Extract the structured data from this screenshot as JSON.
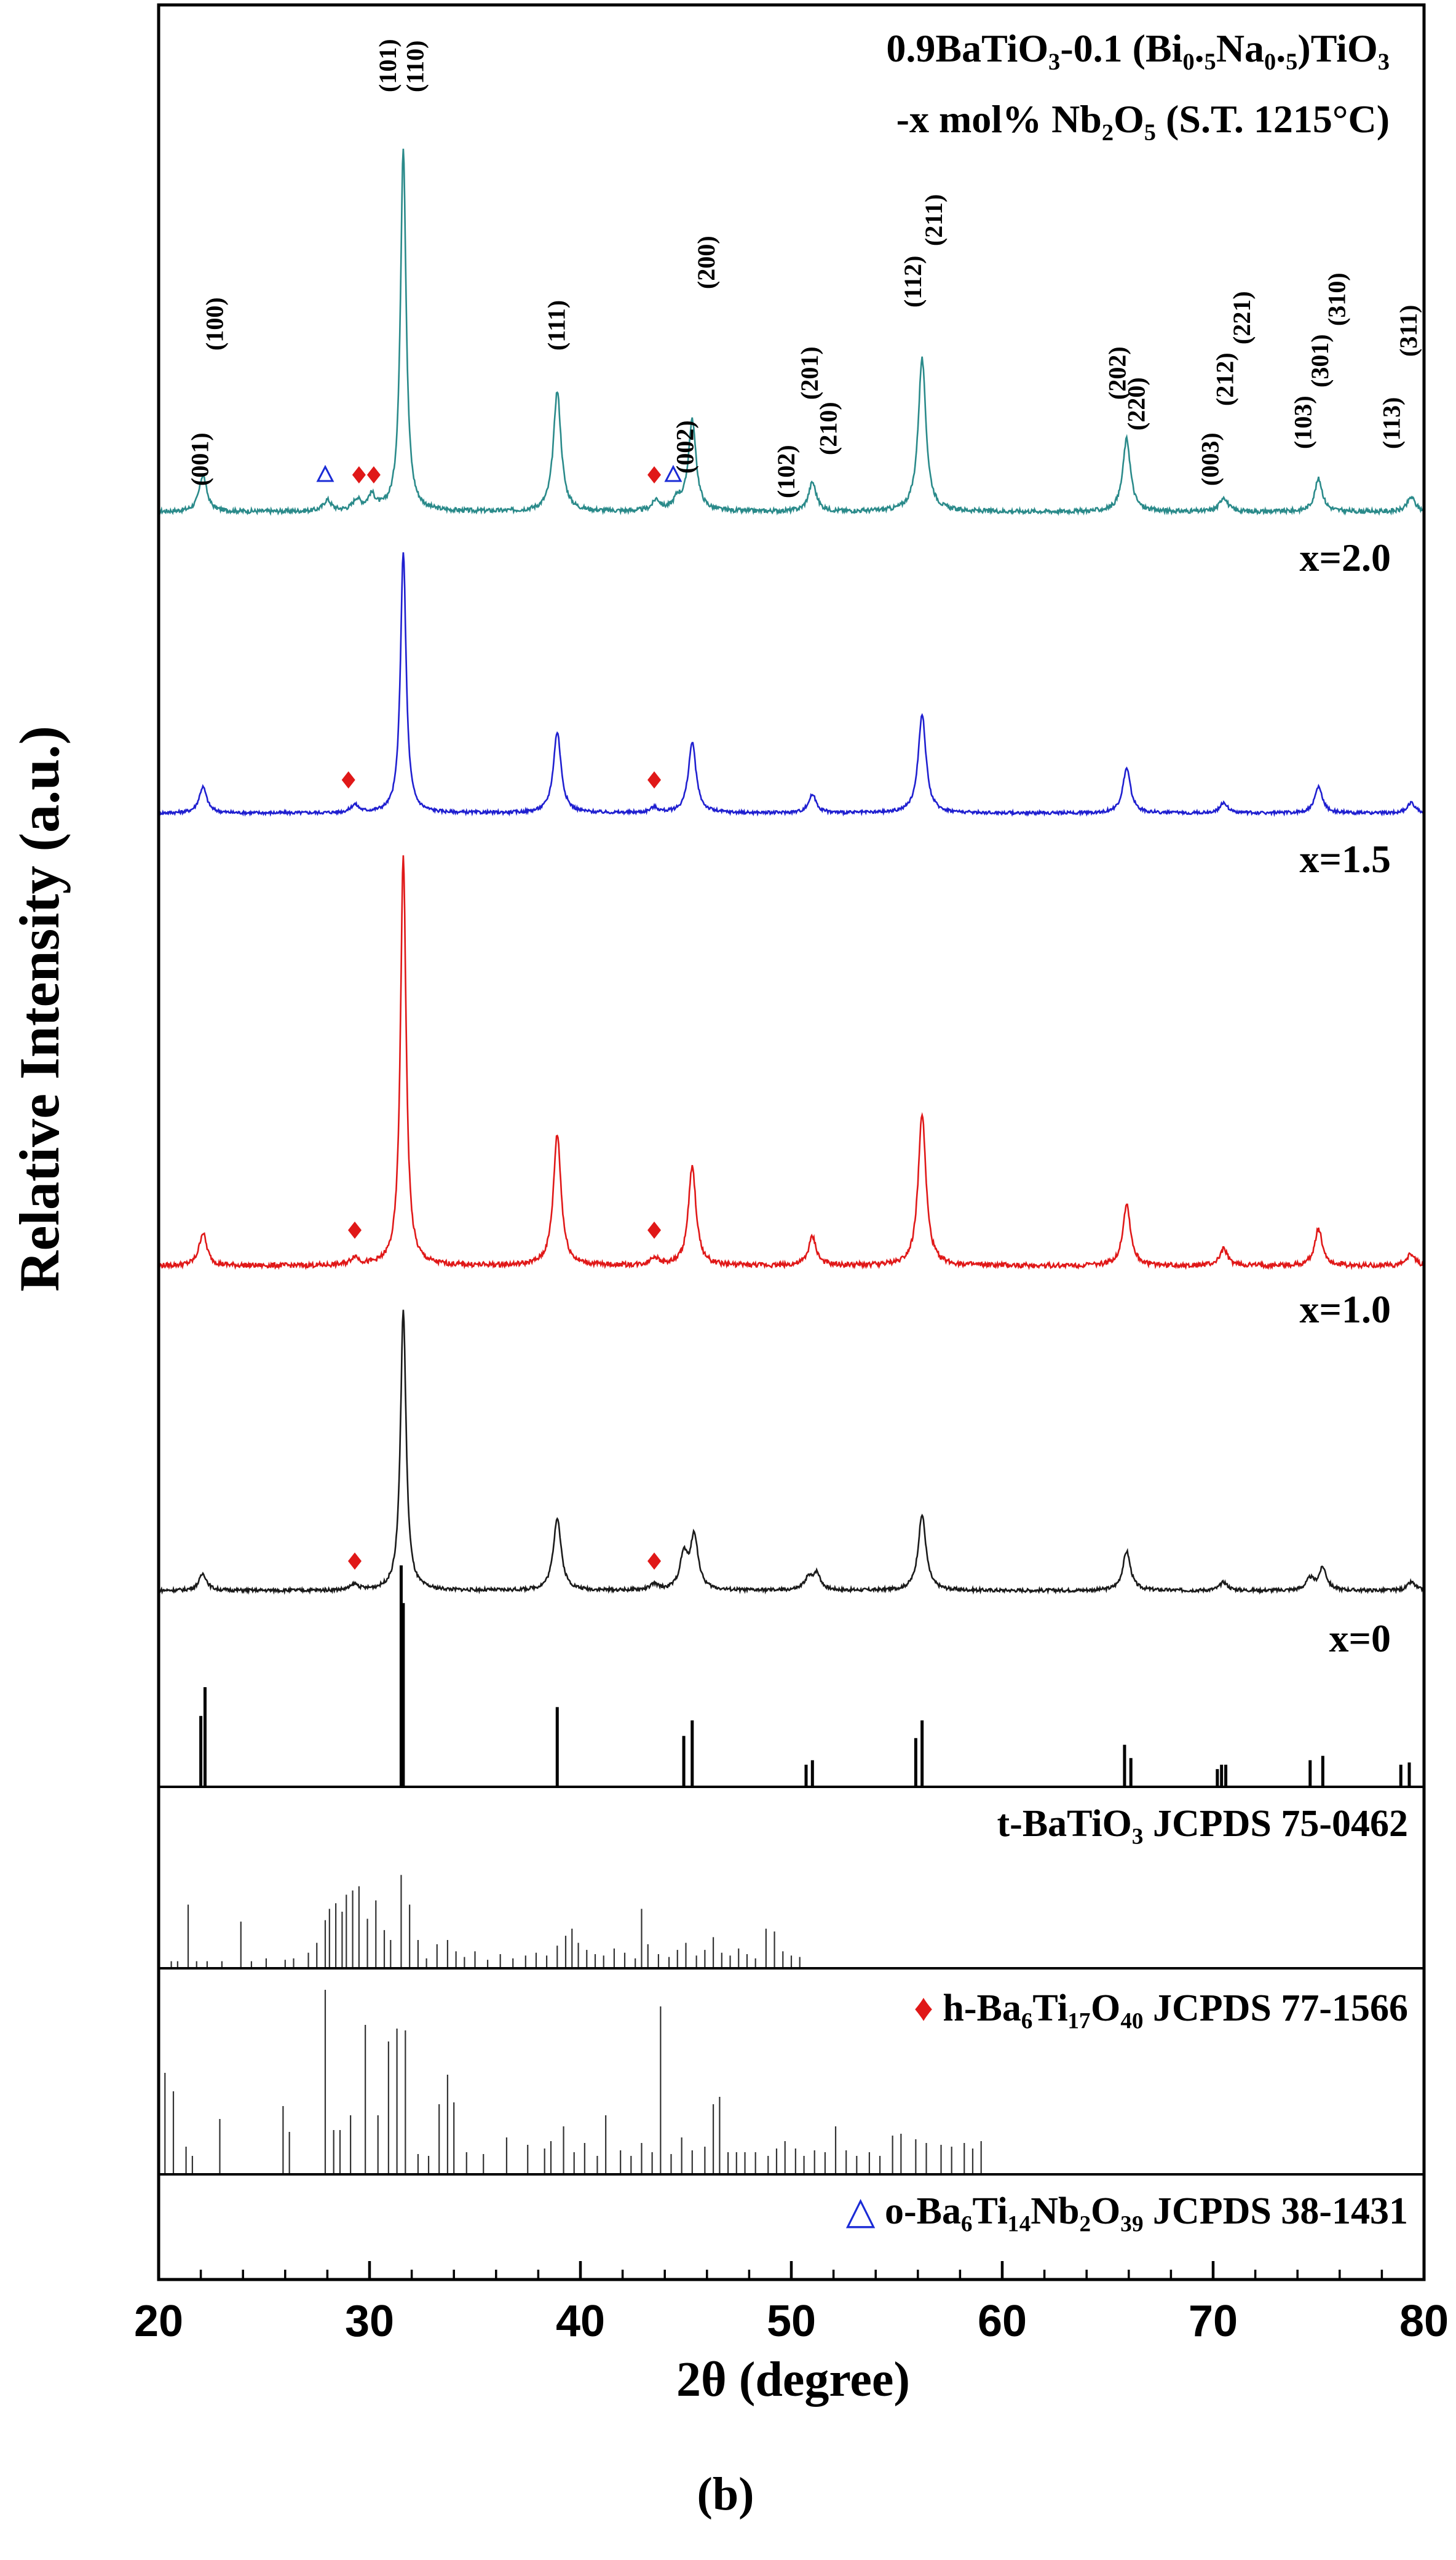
{
  "chart_data": {
    "type": "line",
    "panel_label": "(b)",
    "title_lines": [
      "0.9BaTiO₃-0.1 (Bi₀.₅Na₀.₅)TiO₃",
      "-x mol% Nb₂O₅ (S.T. 1215°C)"
    ],
    "xlabel": "2θ (degree)",
    "ylabel": "Relative Intensity (a.u.)",
    "xlim": [
      20,
      80
    ],
    "xticks": [
      20,
      30,
      40,
      50,
      60,
      70,
      80
    ],
    "colors": {
      "x=2.0": "#2a8a8a",
      "x=1.5": "#1f1fd0",
      "x=1.0": "#e01818",
      "x=0": "#1a1a1a",
      "h_marker": "#e01818",
      "o_marker": "#1a2bd6"
    },
    "peak_positions": [
      22.1,
      31.6,
      38.9,
      45.3,
      51.0,
      56.2,
      65.9,
      70.5,
      75.0,
      79.4
    ],
    "series": [
      {
        "name": "x=2.0",
        "label": "x=2.0",
        "color": "#2a8a8a",
        "baseline": 0.0,
        "peaks": [
          {
            "x": 22.1,
            "h": 0.1
          },
          {
            "x": 28.0,
            "h": 0.03
          },
          {
            "x": 29.4,
            "h": 0.03
          },
          {
            "x": 30.1,
            "h": 0.04
          },
          {
            "x": 31.6,
            "h": 1.0
          },
          {
            "x": 38.9,
            "h": 0.33
          },
          {
            "x": 43.6,
            "h": 0.03
          },
          {
            "x": 44.6,
            "h": 0.03
          },
          {
            "x": 45.3,
            "h": 0.25
          },
          {
            "x": 51.0,
            "h": 0.08
          },
          {
            "x": 56.2,
            "h": 0.42
          },
          {
            "x": 65.9,
            "h": 0.2
          },
          {
            "x": 70.5,
            "h": 0.04
          },
          {
            "x": 75.0,
            "h": 0.09
          },
          {
            "x": 79.4,
            "h": 0.04
          }
        ]
      },
      {
        "name": "x=1.5",
        "label": "x=1.5",
        "color": "#1f1fd0",
        "baseline": 0.0,
        "peaks": [
          {
            "x": 22.1,
            "h": 0.1
          },
          {
            "x": 29.3,
            "h": 0.03
          },
          {
            "x": 31.6,
            "h": 1.0
          },
          {
            "x": 38.9,
            "h": 0.31
          },
          {
            "x": 43.5,
            "h": 0.02
          },
          {
            "x": 45.3,
            "h": 0.27
          },
          {
            "x": 51.0,
            "h": 0.07
          },
          {
            "x": 56.2,
            "h": 0.38
          },
          {
            "x": 65.9,
            "h": 0.17
          },
          {
            "x": 70.5,
            "h": 0.04
          },
          {
            "x": 75.0,
            "h": 0.1
          },
          {
            "x": 79.4,
            "h": 0.04
          }
        ]
      },
      {
        "name": "x=1.0",
        "label": "x=1.0",
        "color": "#e01818",
        "baseline": 0.0,
        "peaks": [
          {
            "x": 22.1,
            "h": 0.08
          },
          {
            "x": 29.3,
            "h": 0.02
          },
          {
            "x": 31.6,
            "h": 1.0
          },
          {
            "x": 38.9,
            "h": 0.32
          },
          {
            "x": 43.5,
            "h": 0.02
          },
          {
            "x": 45.3,
            "h": 0.24
          },
          {
            "x": 51.0,
            "h": 0.07
          },
          {
            "x": 56.2,
            "h": 0.37
          },
          {
            "x": 65.9,
            "h": 0.15
          },
          {
            "x": 70.5,
            "h": 0.04
          },
          {
            "x": 75.0,
            "h": 0.09
          },
          {
            "x": 79.4,
            "h": 0.03
          }
        ]
      },
      {
        "name": "x=0",
        "label": "x=0",
        "color": "#1a1a1a",
        "baseline": 0.0,
        "peaks": [
          {
            "x": 22.1,
            "h": 0.06
          },
          {
            "x": 29.3,
            "h": 0.02
          },
          {
            "x": 31.6,
            "h": 1.0
          },
          {
            "x": 38.9,
            "h": 0.26
          },
          {
            "x": 43.5,
            "h": 0.02
          },
          {
            "x": 44.9,
            "h": 0.12
          },
          {
            "x": 45.4,
            "h": 0.19
          },
          {
            "x": 50.8,
            "h": 0.04
          },
          {
            "x": 51.2,
            "h": 0.06
          },
          {
            "x": 56.2,
            "h": 0.27
          },
          {
            "x": 65.9,
            "h": 0.14
          },
          {
            "x": 70.5,
            "h": 0.03
          },
          {
            "x": 74.6,
            "h": 0.04
          },
          {
            "x": 75.2,
            "h": 0.08
          },
          {
            "x": 79.4,
            "h": 0.03
          }
        ]
      }
    ],
    "hkl_labels": [
      {
        "x": 22.0,
        "text": "(001)"
      },
      {
        "x": 22.7,
        "text": "(100)"
      },
      {
        "x": 30.9,
        "text": "(101)"
      },
      {
        "x": 32.2,
        "text": "(110)"
      },
      {
        "x": 38.9,
        "text": "(111)"
      },
      {
        "x": 45.0,
        "text": "(002)"
      },
      {
        "x": 46.0,
        "text": "(200)"
      },
      {
        "x": 49.8,
        "text": "(102)"
      },
      {
        "x": 50.9,
        "text": "(201)"
      },
      {
        "x": 51.8,
        "text": "(210)"
      },
      {
        "x": 55.8,
        "text": "(112)"
      },
      {
        "x": 56.8,
        "text": "(211)"
      },
      {
        "x": 65.5,
        "text": "(202)"
      },
      {
        "x": 66.4,
        "text": "(220)"
      },
      {
        "x": 69.9,
        "text": "(003)"
      },
      {
        "x": 70.6,
        "text": "(212)"
      },
      {
        "x": 71.4,
        "text": "(221)"
      },
      {
        "x": 74.3,
        "text": "(103)"
      },
      {
        "x": 75.1,
        "text": "(301)"
      },
      {
        "x": 75.9,
        "text": "(310)"
      },
      {
        "x": 78.5,
        "text": "(113)"
      },
      {
        "x": 79.3,
        "text": "(311)"
      }
    ],
    "phase_markers": {
      "x=2.0": {
        "h": [
          29.5,
          30.2,
          43.5
        ],
        "o": [
          27.9,
          44.4
        ]
      },
      "x=1.5": {
        "h": [
          29.0,
          43.5
        ],
        "o": []
      },
      "x=1.0": {
        "h": [
          29.3,
          43.5
        ],
        "o": []
      },
      "x=0": {
        "h": [
          29.3,
          43.5
        ],
        "o": []
      }
    },
    "reference_panels": [
      {
        "name": "t-BaTiO₃ JCPDS 75-0462",
        "label": "t-BaTiO₃ JCPDS 75-0462",
        "marker": "",
        "lines": [
          {
            "x": 22.0,
            "h": 0.32
          },
          {
            "x": 22.2,
            "h": 0.45
          },
          {
            "x": 31.5,
            "h": 1.0
          },
          {
            "x": 31.6,
            "h": 0.83
          },
          {
            "x": 38.9,
            "h": 0.36
          },
          {
            "x": 44.9,
            "h": 0.23
          },
          {
            "x": 45.3,
            "h": 0.3
          },
          {
            "x": 50.7,
            "h": 0.1
          },
          {
            "x": 51.0,
            "h": 0.12
          },
          {
            "x": 55.9,
            "h": 0.22
          },
          {
            "x": 56.2,
            "h": 0.3
          },
          {
            "x": 65.8,
            "h": 0.19
          },
          {
            "x": 66.1,
            "h": 0.13
          },
          {
            "x": 70.2,
            "h": 0.08
          },
          {
            "x": 70.4,
            "h": 0.1
          },
          {
            "x": 70.6,
            "h": 0.1
          },
          {
            "x": 74.6,
            "h": 0.12
          },
          {
            "x": 75.2,
            "h": 0.14
          },
          {
            "x": 78.9,
            "h": 0.1
          },
          {
            "x": 79.3,
            "h": 0.11
          }
        ]
      },
      {
        "name": "h-Ba₆Ti₁₇O₄₀ JCPDS 77-1566",
        "label": "h-Ba₆Ti₁₇O₄₀ JCPDS 77-1566",
        "marker": "♦",
        "lines": [
          {
            "x": 20.6,
            "h": 0.05
          },
          {
            "x": 20.9,
            "h": 0.05
          },
          {
            "x": 21.4,
            "h": 0.45
          },
          {
            "x": 21.8,
            "h": 0.05
          },
          {
            "x": 22.3,
            "h": 0.05
          },
          {
            "x": 23.0,
            "h": 0.05
          },
          {
            "x": 23.9,
            "h": 0.33
          },
          {
            "x": 24.4,
            "h": 0.05
          },
          {
            "x": 25.1,
            "h": 0.07
          },
          {
            "x": 26.0,
            "h": 0.06
          },
          {
            "x": 26.4,
            "h": 0.07
          },
          {
            "x": 27.1,
            "h": 0.11
          },
          {
            "x": 27.5,
            "h": 0.18
          },
          {
            "x": 27.9,
            "h": 0.34
          },
          {
            "x": 28.1,
            "h": 0.42
          },
          {
            "x": 28.4,
            "h": 0.46
          },
          {
            "x": 28.7,
            "h": 0.4
          },
          {
            "x": 28.9,
            "h": 0.52
          },
          {
            "x": 29.2,
            "h": 0.55
          },
          {
            "x": 29.5,
            "h": 0.58
          },
          {
            "x": 29.9,
            "h": 0.35
          },
          {
            "x": 30.3,
            "h": 0.48
          },
          {
            "x": 30.7,
            "h": 0.27
          },
          {
            "x": 31.0,
            "h": 0.2
          },
          {
            "x": 31.5,
            "h": 0.66
          },
          {
            "x": 31.9,
            "h": 0.45
          },
          {
            "x": 32.3,
            "h": 0.2
          },
          {
            "x": 32.7,
            "h": 0.07
          },
          {
            "x": 33.2,
            "h": 0.17
          },
          {
            "x": 33.7,
            "h": 0.2
          },
          {
            "x": 34.1,
            "h": 0.12
          },
          {
            "x": 34.5,
            "h": 0.08
          },
          {
            "x": 35.0,
            "h": 0.12
          },
          {
            "x": 35.6,
            "h": 0.06
          },
          {
            "x": 36.2,
            "h": 0.1
          },
          {
            "x": 36.8,
            "h": 0.07
          },
          {
            "x": 37.4,
            "h": 0.09
          },
          {
            "x": 37.9,
            "h": 0.11
          },
          {
            "x": 38.4,
            "h": 0.09
          },
          {
            "x": 38.9,
            "h": 0.16
          },
          {
            "x": 39.3,
            "h": 0.23
          },
          {
            "x": 39.6,
            "h": 0.28
          },
          {
            "x": 39.9,
            "h": 0.18
          },
          {
            "x": 40.3,
            "h": 0.13
          },
          {
            "x": 40.7,
            "h": 0.1
          },
          {
            "x": 41.1,
            "h": 0.09
          },
          {
            "x": 41.6,
            "h": 0.14
          },
          {
            "x": 42.1,
            "h": 0.11
          },
          {
            "x": 42.6,
            "h": 0.07
          },
          {
            "x": 42.9,
            "h": 0.42
          },
          {
            "x": 43.2,
            "h": 0.17
          },
          {
            "x": 43.7,
            "h": 0.1
          },
          {
            "x": 44.2,
            "h": 0.08
          },
          {
            "x": 44.6,
            "h": 0.13
          },
          {
            "x": 45.0,
            "h": 0.18
          },
          {
            "x": 45.5,
            "h": 0.09
          },
          {
            "x": 45.9,
            "h": 0.13
          },
          {
            "x": 46.3,
            "h": 0.22
          },
          {
            "x": 46.7,
            "h": 0.11
          },
          {
            "x": 47.1,
            "h": 0.09
          },
          {
            "x": 47.5,
            "h": 0.14
          },
          {
            "x": 47.9,
            "h": 0.1
          },
          {
            "x": 48.3,
            "h": 0.07
          },
          {
            "x": 48.8,
            "h": 0.28
          },
          {
            "x": 49.2,
            "h": 0.26
          },
          {
            "x": 49.6,
            "h": 0.12
          },
          {
            "x": 50.0,
            "h": 0.09
          },
          {
            "x": 50.4,
            "h": 0.08
          }
        ]
      },
      {
        "name": "o-Ba₆Ti₁₄Nb₂O₃₉ JCPDS 38-1431",
        "label": "o-Ba₆Ti₁₄Nb₂O₃₉ JCPDS 38-1431",
        "marker": "△",
        "lines": [
          {
            "x": 20.3,
            "h": 0.55
          },
          {
            "x": 20.7,
            "h": 0.45
          },
          {
            "x": 21.3,
            "h": 0.15
          },
          {
            "x": 21.6,
            "h": 0.1
          },
          {
            "x": 22.9,
            "h": 0.3
          },
          {
            "x": 25.9,
            "h": 0.37
          },
          {
            "x": 26.2,
            "h": 0.23
          },
          {
            "x": 27.9,
            "h": 1.0
          },
          {
            "x": 28.3,
            "h": 0.24
          },
          {
            "x": 28.6,
            "h": 0.24
          },
          {
            "x": 29.1,
            "h": 0.32
          },
          {
            "x": 29.8,
            "h": 0.81
          },
          {
            "x": 30.4,
            "h": 0.32
          },
          {
            "x": 30.9,
            "h": 0.72
          },
          {
            "x": 31.3,
            "h": 0.79
          },
          {
            "x": 31.7,
            "h": 0.78
          },
          {
            "x": 32.3,
            "h": 0.11
          },
          {
            "x": 32.8,
            "h": 0.1
          },
          {
            "x": 33.3,
            "h": 0.38
          },
          {
            "x": 33.7,
            "h": 0.54
          },
          {
            "x": 34.0,
            "h": 0.39
          },
          {
            "x": 34.6,
            "h": 0.12
          },
          {
            "x": 35.4,
            "h": 0.11
          },
          {
            "x": 36.5,
            "h": 0.2
          },
          {
            "x": 37.5,
            "h": 0.16
          },
          {
            "x": 38.3,
            "h": 0.14
          },
          {
            "x": 38.6,
            "h": 0.18
          },
          {
            "x": 39.2,
            "h": 0.26
          },
          {
            "x": 39.7,
            "h": 0.12
          },
          {
            "x": 40.2,
            "h": 0.17
          },
          {
            "x": 40.8,
            "h": 0.1
          },
          {
            "x": 41.2,
            "h": 0.32
          },
          {
            "x": 41.9,
            "h": 0.13
          },
          {
            "x": 42.4,
            "h": 0.1
          },
          {
            "x": 42.9,
            "h": 0.17
          },
          {
            "x": 43.4,
            "h": 0.12
          },
          {
            "x": 43.8,
            "h": 0.91
          },
          {
            "x": 44.3,
            "h": 0.11
          },
          {
            "x": 44.8,
            "h": 0.2
          },
          {
            "x": 45.3,
            "h": 0.13
          },
          {
            "x": 45.9,
            "h": 0.15
          },
          {
            "x": 46.3,
            "h": 0.38
          },
          {
            "x": 46.6,
            "h": 0.42
          },
          {
            "x": 47.0,
            "h": 0.12
          },
          {
            "x": 47.4,
            "h": 0.12
          },
          {
            "x": 47.8,
            "h": 0.12
          },
          {
            "x": 48.3,
            "h": 0.12
          },
          {
            "x": 48.9,
            "h": 0.1
          },
          {
            "x": 49.3,
            "h": 0.14
          },
          {
            "x": 49.7,
            "h": 0.18
          },
          {
            "x": 50.2,
            "h": 0.14
          },
          {
            "x": 50.6,
            "h": 0.1
          },
          {
            "x": 51.1,
            "h": 0.13
          },
          {
            "x": 51.6,
            "h": 0.12
          },
          {
            "x": 52.1,
            "h": 0.26
          },
          {
            "x": 52.6,
            "h": 0.13
          },
          {
            "x": 53.1,
            "h": 0.1
          },
          {
            "x": 53.7,
            "h": 0.12
          },
          {
            "x": 54.2,
            "h": 0.1
          },
          {
            "x": 54.8,
            "h": 0.21
          },
          {
            "x": 55.2,
            "h": 0.22
          },
          {
            "x": 55.9,
            "h": 0.19
          },
          {
            "x": 56.4,
            "h": 0.17
          },
          {
            "x": 57.1,
            "h": 0.16
          },
          {
            "x": 57.6,
            "h": 0.15
          },
          {
            "x": 58.2,
            "h": 0.17
          },
          {
            "x": 58.6,
            "h": 0.14
          },
          {
            "x": 59.0,
            "h": 0.18
          }
        ]
      }
    ],
    "grid": false,
    "legend": "inline-labels"
  }
}
